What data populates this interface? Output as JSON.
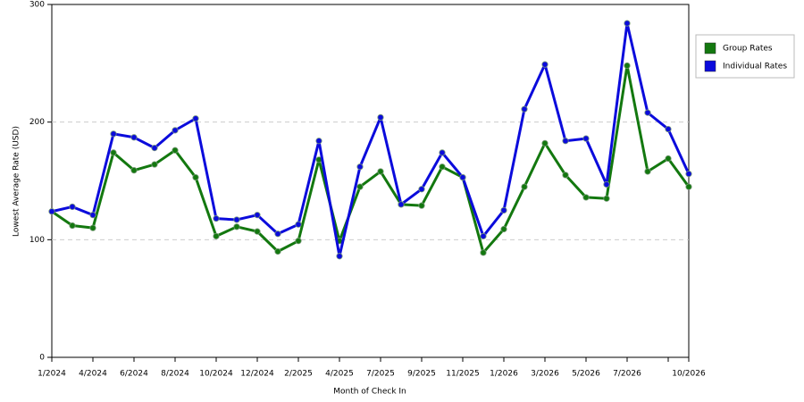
{
  "chart_data": {
    "type": "line",
    "x_label": "Month of Check In",
    "y_label": "Lowest Average Rate (USD)",
    "categories": [
      "1/2024",
      null,
      "4/2024",
      null,
      "6/2024",
      null,
      "8/2024",
      null,
      "10/2024",
      null,
      "12/2024",
      null,
      "2/2025",
      null,
      "4/2025",
      null,
      "7/2025",
      null,
      "9/2025",
      null,
      "11/2025",
      null,
      "1/2026",
      null,
      "3/2026",
      null,
      "5/2026",
      null,
      "7/2026",
      null,
      null,
      "10/2026"
    ],
    "series": [
      {
        "name": "Group Rates",
        "color": "#13780f",
        "values": [
          124,
          112,
          110,
          174,
          159,
          164,
          176,
          153,
          103,
          111,
          107,
          90,
          99,
          168,
          99,
          145,
          158,
          130,
          129,
          162,
          153,
          89,
          109,
          145,
          182,
          155,
          136,
          135,
          248,
          158,
          169,
          145
        ]
      },
      {
        "name": "Individual Rates",
        "color": "#0b0bdc",
        "values": [
          124,
          128,
          121,
          190,
          187,
          178,
          193,
          203,
          118,
          117,
          121,
          105,
          113,
          184,
          86,
          162,
          204,
          130,
          143,
          174,
          153,
          103,
          125,
          211,
          249,
          184,
          186,
          147,
          284,
          208,
          194,
          156
        ]
      }
    ],
    "ylim": [
      0,
      300
    ],
    "yticks": [
      0,
      100,
      200,
      300
    ],
    "grid": true,
    "legend": "right"
  }
}
